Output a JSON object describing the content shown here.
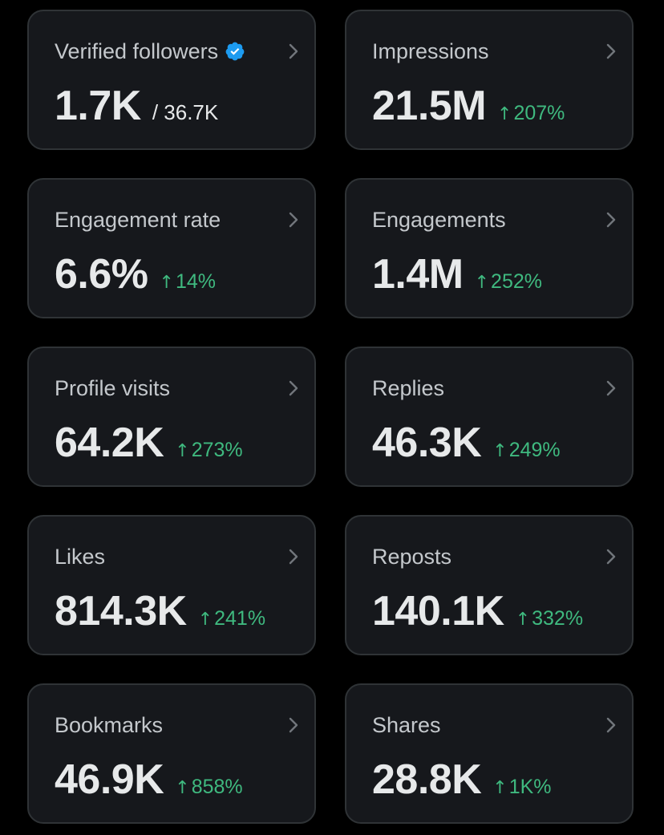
{
  "colors": {
    "background": "#000000",
    "card": "#16181c",
    "border": "#2f3336",
    "label": "#c4c8cc",
    "value": "#e7e9ea",
    "positive": "#3fb97f",
    "verified": "#1d9bf0"
  },
  "metrics": [
    {
      "label": "Verified followers",
      "value": "1.7K",
      "total": "/ 36.7K",
      "icon": "verified-badge-icon"
    },
    {
      "label": "Impressions",
      "value": "21.5M",
      "change_arrow": "↑",
      "change": "207%"
    },
    {
      "label": "Engagement rate",
      "value": "6.6%",
      "change_arrow": "↑",
      "change": "14%"
    },
    {
      "label": "Engagements",
      "value": "1.4M",
      "change_arrow": "↑",
      "change": "252%"
    },
    {
      "label": "Profile visits",
      "value": "64.2K",
      "change_arrow": "↑",
      "change": "273%"
    },
    {
      "label": "Replies",
      "value": "46.3K",
      "change_arrow": "↑",
      "change": "249%"
    },
    {
      "label": "Likes",
      "value": "814.3K",
      "change_arrow": "↑",
      "change": "241%"
    },
    {
      "label": "Reposts",
      "value": "140.1K",
      "change_arrow": "↑",
      "change": "332%"
    },
    {
      "label": "Bookmarks",
      "value": "46.9K",
      "change_arrow": "↑",
      "change": "858%"
    },
    {
      "label": "Shares",
      "value": "28.8K",
      "change_arrow": "↑",
      "change": "1K%"
    }
  ]
}
